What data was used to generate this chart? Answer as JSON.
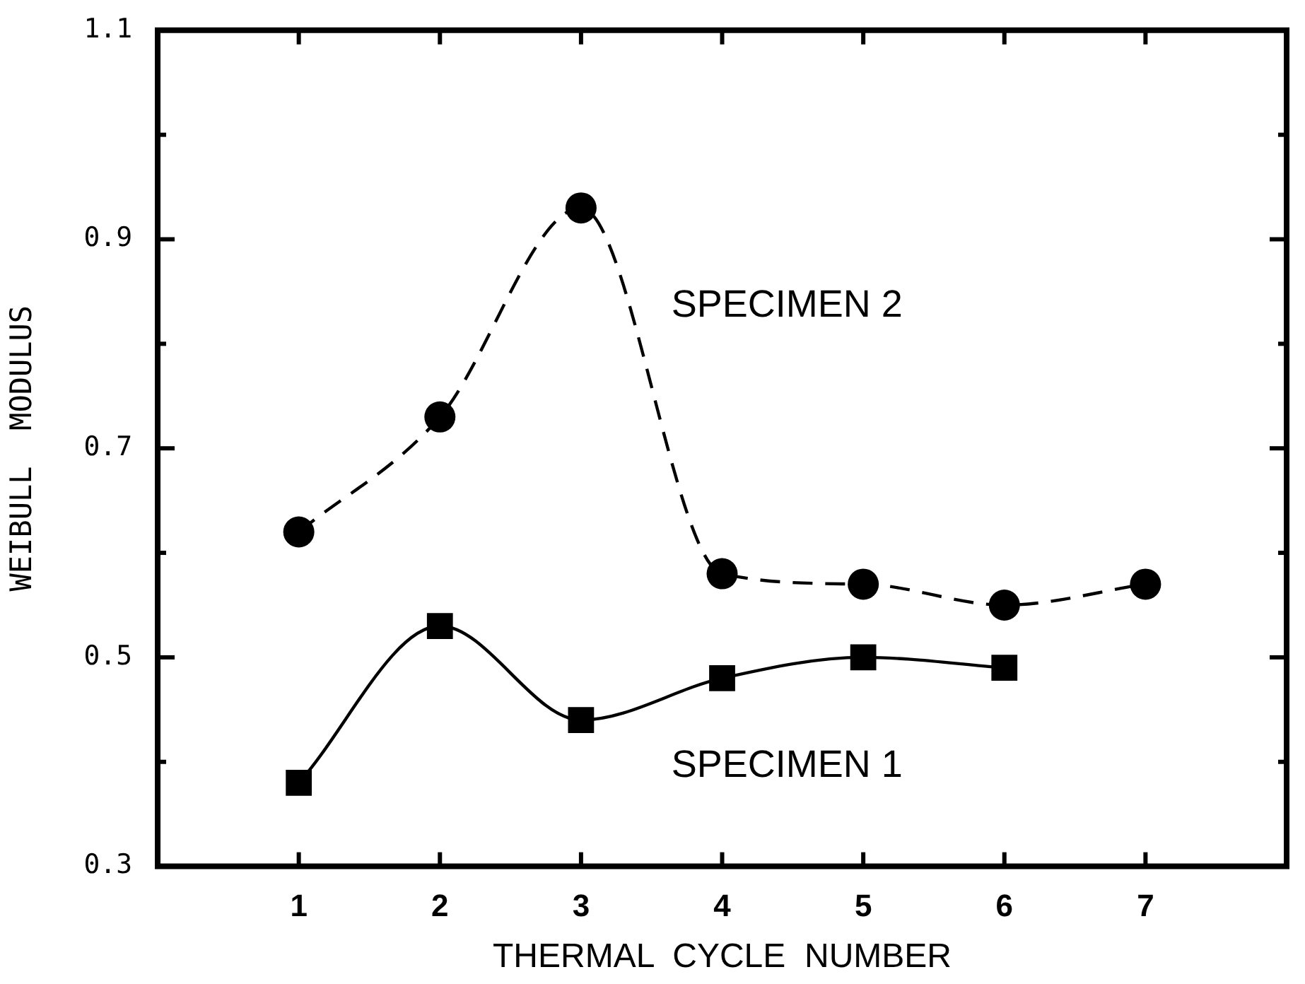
{
  "chart_data": {
    "type": "line",
    "xlabel": "THERMAL  CYCLE  NUMBER",
    "ylabel": "WEIBULL  MODULUS",
    "x": [
      1,
      2,
      3,
      4,
      5,
      6,
      7
    ],
    "xlim": [
      0,
      8
    ],
    "xticks": [
      1,
      2,
      3,
      4,
      5,
      6,
      7
    ],
    "ylim": [
      0.3,
      1.1
    ],
    "yticks": [
      0.3,
      {
        "value": 0.4,
        "label": null
      },
      0.5,
      {
        "value": 0.6,
        "label": null
      },
      0.7,
      {
        "value": 0.8,
        "label": null
      },
      0.9,
      {
        "value": 1.0,
        "label": null
      },
      1.1
    ],
    "series": [
      {
        "name": "SPECIMEN 2",
        "color": "#000000",
        "marker": "circle",
        "line_style": "dashed",
        "values": [
          0.62,
          0.73,
          0.93,
          0.58,
          0.57,
          0.55,
          0.57
        ]
      },
      {
        "name": "SPECIMEN 1",
        "color": "#000000",
        "marker": "square",
        "line_style": "solid",
        "values": [
          0.38,
          0.53,
          0.44,
          0.48,
          0.5,
          0.49,
          null
        ]
      }
    ]
  }
}
